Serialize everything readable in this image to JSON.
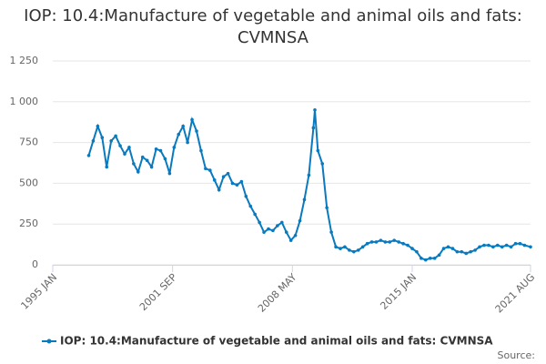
{
  "chart_data": {
    "type": "line",
    "title": "IOP: 10.4:Manufacture of vegetable and animal oils and fats: CVMNSA",
    "source": "Source:",
    "x": [
      "1997 JAN",
      "1997 APR",
      "1997 JUL",
      "1997 OCT",
      "1998 JAN",
      "1998 APR",
      "1998 JUL",
      "1998 OCT",
      "1999 JAN",
      "1999 APR",
      "1999 JUL",
      "1999 OCT",
      "2000 JAN",
      "2000 APR",
      "2000 JUL",
      "2000 OCT",
      "2001 JAN",
      "2001 APR",
      "2001 JUL",
      "2001 OCT",
      "2002 JAN",
      "2002 APR",
      "2002 JUL",
      "2002 OCT",
      "2003 JAN",
      "2003 APR",
      "2003 JUL",
      "2003 OCT",
      "2004 JAN",
      "2004 APR",
      "2004 JUL",
      "2004 OCT",
      "2005 JAN",
      "2005 APR",
      "2005 JUL",
      "2005 OCT",
      "2006 JAN",
      "2006 APR",
      "2006 JUL",
      "2006 OCT",
      "2007 JAN",
      "2007 APR",
      "2007 JUL",
      "2007 OCT",
      "2008 JAN",
      "2008 APR",
      "2008 JUL",
      "2008 OCT",
      "2009 JAN",
      "2009 APR",
      "2009 JUL",
      "2009 AUG",
      "2009 OCT",
      "2010 JAN",
      "2010 APR",
      "2010 JUL",
      "2010 OCT",
      "2011 JAN",
      "2011 APR",
      "2011 JUL",
      "2011 OCT",
      "2012 JAN",
      "2012 APR",
      "2012 JUL",
      "2012 OCT",
      "2013 JAN",
      "2013 APR",
      "2013 JUL",
      "2013 OCT",
      "2014 JAN",
      "2014 APR",
      "2014 JUL",
      "2014 OCT",
      "2015 JAN",
      "2015 APR",
      "2015 JUL",
      "2015 OCT",
      "2016 JAN",
      "2016 APR",
      "2016 JUL",
      "2016 OCT",
      "2017 JAN",
      "2017 APR",
      "2017 JUL",
      "2017 OCT",
      "2018 JAN",
      "2018 APR",
      "2018 JUL",
      "2018 OCT",
      "2019 JAN",
      "2019 APR",
      "2019 JUL",
      "2019 OCT",
      "2020 JAN",
      "2020 APR",
      "2020 JUL",
      "2020 OCT",
      "2021 JAN",
      "2021 APR",
      "2021 AUG"
    ],
    "series": [
      {
        "name": "IOP: 10.4:Manufacture of vegetable and animal oils and fats: CVMNSA",
        "color": "#0a7abf",
        "values": [
          670,
          760,
          850,
          780,
          600,
          760,
          790,
          730,
          680,
          720,
          620,
          570,
          660,
          640,
          600,
          710,
          700,
          650,
          560,
          720,
          800,
          850,
          750,
          890,
          820,
          700,
          590,
          580,
          520,
          460,
          540,
          560,
          500,
          490,
          510,
          420,
          360,
          310,
          260,
          200,
          220,
          210,
          240,
          260,
          200,
          150,
          180,
          270,
          400,
          550,
          840,
          950,
          700,
          620,
          350,
          200,
          110,
          100,
          110,
          90,
          80,
          90,
          110,
          130,
          140,
          140,
          150,
          140,
          140,
          150,
          140,
          130,
          120,
          100,
          80,
          40,
          30,
          40,
          40,
          60,
          100,
          110,
          100,
          80,
          80,
          70,
          80,
          90,
          110,
          120,
          120,
          110,
          120,
          110,
          120,
          110,
          130,
          130,
          120,
          110
        ]
      }
    ],
    "xlim": [
      "1995 JAN",
      "2021 AUG"
    ],
    "xticks": [
      "1995 JAN",
      "2001 SEP",
      "2008 MAY",
      "2015 JAN",
      "2021 AUG"
    ],
    "ylim": [
      0,
      1250
    ],
    "yticks": [
      0,
      250,
      500,
      750,
      {
        "value": 1000,
        "label": "1 000"
      },
      {
        "value": 1250,
        "label": "1 250"
      }
    ],
    "grid": true,
    "legend": "bottom"
  }
}
